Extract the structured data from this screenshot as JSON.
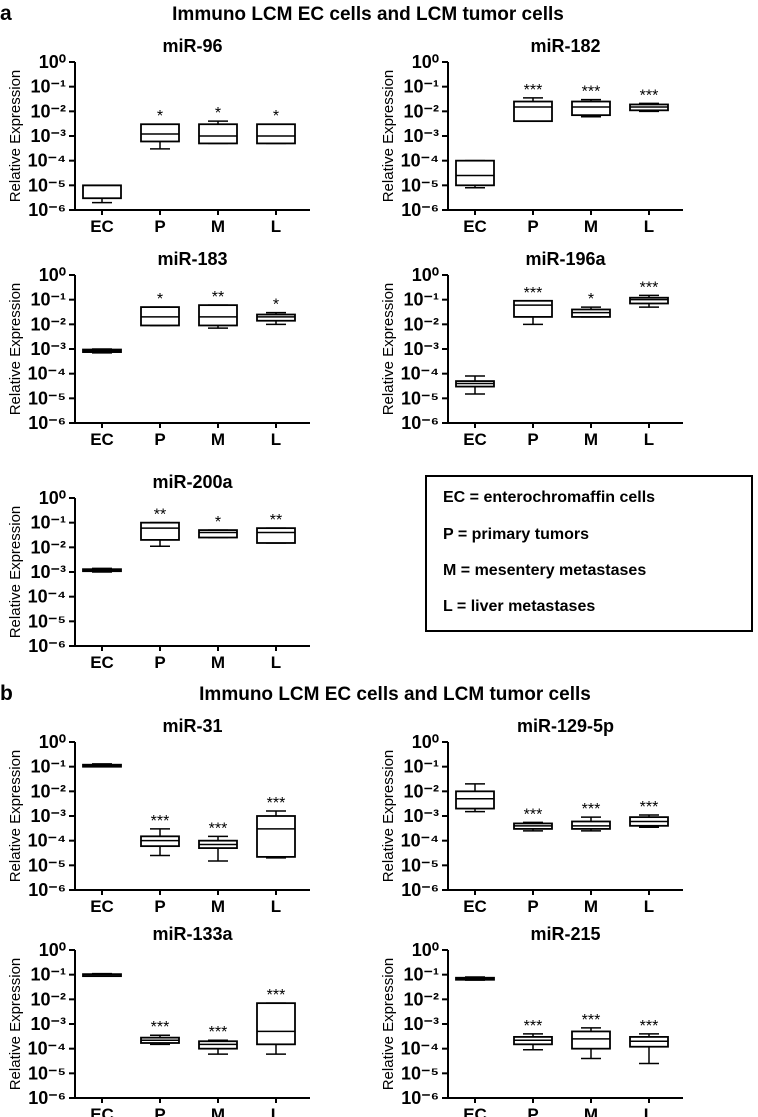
{
  "panels": [
    {
      "letter": "a",
      "title": "Immuno LCM EC cells and LCM tumor cells"
    },
    {
      "letter": "b",
      "title": "Immuno LCM EC cells and LCM tumor cells"
    }
  ],
  "legend": [
    "EC = enterochromaffin cells",
    "P = primary tumors",
    "M = mesentery metastases",
    "L = liver metastases"
  ],
  "chart_data": [
    {
      "type": "box",
      "panel": "a",
      "title": "miR-96",
      "ylabel": "Relative Expression",
      "yscale": "log",
      "ylim": [
        1e-06,
        1
      ],
      "yticks": [
        "10⁰",
        "10⁻¹",
        "10⁻²",
        "10⁻³",
        "10⁻⁴",
        "10⁻⁵",
        "10⁻⁶"
      ],
      "categories": [
        "EC",
        "P",
        "M",
        "L"
      ],
      "boxes": [
        {
          "min": 2e-06,
          "q1": 3e-06,
          "median": 1e-05,
          "q3": 1e-05,
          "max": 1e-05,
          "sig": ""
        },
        {
          "min": 0.0003,
          "q1": 0.0006,
          "median": 0.0012,
          "q3": 0.003,
          "max": 0.003,
          "sig": "*"
        },
        {
          "min": 0.0005,
          "q1": 0.0005,
          "median": 0.001,
          "q3": 0.003,
          "max": 0.004,
          "sig": "*"
        },
        {
          "min": 0.0005,
          "q1": 0.0005,
          "median": 0.001,
          "q3": 0.003,
          "max": 0.003,
          "sig": "*"
        }
      ]
    },
    {
      "type": "box",
      "panel": "a",
      "title": "miR-182",
      "ylabel": "Relative Expression",
      "yscale": "log",
      "ylim": [
        1e-06,
        1
      ],
      "yticks": [
        "10⁰",
        "10⁻¹",
        "10⁻²",
        "10⁻³",
        "10⁻⁴",
        "10⁻⁵",
        "10⁻⁶"
      ],
      "categories": [
        "EC",
        "P",
        "M",
        "L"
      ],
      "boxes": [
        {
          "min": 8e-06,
          "q1": 1e-05,
          "median": 2.5e-05,
          "q3": 0.0001,
          "max": 0.0001,
          "sig": ""
        },
        {
          "min": 0.004,
          "q1": 0.004,
          "median": 0.015,
          "q3": 0.025,
          "max": 0.035,
          "sig": "***"
        },
        {
          "min": 0.006,
          "q1": 0.007,
          "median": 0.015,
          "q3": 0.025,
          "max": 0.03,
          "sig": "***"
        },
        {
          "min": 0.01,
          "q1": 0.011,
          "median": 0.015,
          "q3": 0.019,
          "max": 0.021,
          "sig": "***"
        }
      ]
    },
    {
      "type": "box",
      "panel": "a",
      "title": "miR-183",
      "ylabel": "Relative Expression",
      "yscale": "log",
      "ylim": [
        1e-06,
        1
      ],
      "yticks": [
        "10⁰",
        "10⁻¹",
        "10⁻²",
        "10⁻³",
        "10⁻⁴",
        "10⁻⁵",
        "10⁻⁶"
      ],
      "categories": [
        "EC",
        "P",
        "M",
        "L"
      ],
      "boxes": [
        {
          "min": 0.0007,
          "q1": 0.00075,
          "median": 0.00085,
          "q3": 0.00095,
          "max": 0.001,
          "sig": ""
        },
        {
          "min": 0.009,
          "q1": 0.009,
          "median": 0.02,
          "q3": 0.05,
          "max": 0.05,
          "sig": "*"
        },
        {
          "min": 0.007,
          "q1": 0.009,
          "median": 0.02,
          "q3": 0.06,
          "max": 0.06,
          "sig": "**"
        },
        {
          "min": 0.01,
          "q1": 0.014,
          "median": 0.02,
          "q3": 0.025,
          "max": 0.03,
          "sig": "*"
        }
      ]
    },
    {
      "type": "box",
      "panel": "a",
      "title": "miR-196a",
      "ylabel": "Relative Expression",
      "yscale": "log",
      "ylim": [
        1e-06,
        1
      ],
      "yticks": [
        "10⁰",
        "10⁻¹",
        "10⁻²",
        "10⁻³",
        "10⁻⁴",
        "10⁻⁵",
        "10⁻⁶"
      ],
      "categories": [
        "EC",
        "P",
        "M",
        "L"
      ],
      "boxes": [
        {
          "min": 1.5e-05,
          "q1": 3e-05,
          "median": 4e-05,
          "q3": 5e-05,
          "max": 8e-05,
          "sig": ""
        },
        {
          "min": 0.01,
          "q1": 0.02,
          "median": 0.06,
          "q3": 0.09,
          "max": 0.09,
          "sig": "***"
        },
        {
          "min": 0.02,
          "q1": 0.02,
          "median": 0.03,
          "q3": 0.04,
          "max": 0.05,
          "sig": "*"
        },
        {
          "min": 0.05,
          "q1": 0.07,
          "median": 0.1,
          "q3": 0.12,
          "max": 0.15,
          "sig": "***"
        }
      ]
    },
    {
      "type": "box",
      "panel": "a",
      "title": "miR-200a",
      "ylabel": "Relative Expression",
      "yscale": "log",
      "ylim": [
        1e-06,
        1
      ],
      "yticks": [
        "10⁰",
        "10⁻¹",
        "10⁻²",
        "10⁻³",
        "10⁻⁴",
        "10⁻⁵",
        "10⁻⁶"
      ],
      "categories": [
        "EC",
        "P",
        "M",
        "L"
      ],
      "boxes": [
        {
          "min": 0.001,
          "q1": 0.0011,
          "median": 0.0012,
          "q3": 0.0013,
          "max": 0.0014,
          "sig": ""
        },
        {
          "min": 0.011,
          "q1": 0.02,
          "median": 0.06,
          "q3": 0.1,
          "max": 0.1,
          "sig": "**"
        },
        {
          "min": 0.025,
          "q1": 0.025,
          "median": 0.04,
          "q3": 0.05,
          "max": 0.05,
          "sig": "*"
        },
        {
          "min": 0.015,
          "q1": 0.015,
          "median": 0.04,
          "q3": 0.06,
          "max": 0.06,
          "sig": "**"
        }
      ]
    },
    {
      "type": "box",
      "panel": "b",
      "title": "miR-31",
      "ylabel": "Relative Expression",
      "yscale": "log",
      "ylim": [
        1e-06,
        1
      ],
      "yticks": [
        "10⁰",
        "10⁻¹",
        "10⁻²",
        "10⁻³",
        "10⁻⁴",
        "10⁻⁵",
        "10⁻⁶"
      ],
      "categories": [
        "EC",
        "P",
        "M",
        "L"
      ],
      "boxes": [
        {
          "min": 0.1,
          "q1": 0.1,
          "median": 0.11,
          "q3": 0.12,
          "max": 0.13,
          "sig": ""
        },
        {
          "min": 2.5e-05,
          "q1": 6e-05,
          "median": 0.0001,
          "q3": 0.00015,
          "max": 0.0003,
          "sig": "***"
        },
        {
          "min": 1.5e-05,
          "q1": 5e-05,
          "median": 7e-05,
          "q3": 0.0001,
          "max": 0.00015,
          "sig": "***"
        },
        {
          "min": 2e-05,
          "q1": 2.2e-05,
          "median": 0.0003,
          "q3": 0.001,
          "max": 0.0016,
          "sig": "***"
        }
      ]
    },
    {
      "type": "box",
      "panel": "b",
      "title": "miR-129-5p",
      "ylabel": "Relative Expression",
      "yscale": "log",
      "ylim": [
        1e-06,
        1
      ],
      "yticks": [
        "10⁰",
        "10⁻¹",
        "10⁻²",
        "10⁻³",
        "10⁻⁴",
        "10⁻⁵",
        "10⁻⁶"
      ],
      "categories": [
        "EC",
        "P",
        "M",
        "L"
      ],
      "boxes": [
        {
          "min": 0.0015,
          "q1": 0.002,
          "median": 0.005,
          "q3": 0.01,
          "max": 0.02,
          "sig": ""
        },
        {
          "min": 0.00025,
          "q1": 0.0003,
          "median": 0.0004,
          "q3": 0.0005,
          "max": 0.00055,
          "sig": "***"
        },
        {
          "min": 0.00025,
          "q1": 0.0003,
          "median": 0.0004,
          "q3": 0.0006,
          "max": 0.0009,
          "sig": "***"
        },
        {
          "min": 0.00035,
          "q1": 0.0004,
          "median": 0.0006,
          "q3": 0.0009,
          "max": 0.0011,
          "sig": "***"
        }
      ]
    },
    {
      "type": "box",
      "panel": "b",
      "title": "miR-133a",
      "ylabel": "Relative Expression",
      "yscale": "log",
      "ylim": [
        1e-06,
        1
      ],
      "yticks": [
        "10⁰",
        "10⁻¹",
        "10⁻²",
        "10⁻³",
        "10⁻⁴",
        "10⁻⁵",
        "10⁻⁶"
      ],
      "categories": [
        "EC",
        "P",
        "M",
        "L"
      ],
      "boxes": [
        {
          "min": 0.09,
          "q1": 0.09,
          "median": 0.1,
          "q3": 0.105,
          "max": 0.11,
          "sig": ""
        },
        {
          "min": 0.00015,
          "q1": 0.00017,
          "median": 0.00022,
          "q3": 0.00028,
          "max": 0.00035,
          "sig": "***"
        },
        {
          "min": 6e-05,
          "q1": 0.0001,
          "median": 0.00015,
          "q3": 0.0002,
          "max": 0.00022,
          "sig": "***"
        },
        {
          "min": 6e-05,
          "q1": 0.00015,
          "median": 0.0005,
          "q3": 0.007,
          "max": 0.007,
          "sig": "***"
        }
      ]
    },
    {
      "type": "box",
      "panel": "b",
      "title": "miR-215",
      "ylabel": "Relative Expression",
      "yscale": "log",
      "ylim": [
        1e-06,
        1
      ],
      "yticks": [
        "10⁰",
        "10⁻¹",
        "10⁻²",
        "10⁻³",
        "10⁻⁴",
        "10⁻⁵",
        "10⁻⁶"
      ],
      "categories": [
        "EC",
        "P",
        "M",
        "L"
      ],
      "boxes": [
        {
          "min": 0.06,
          "q1": 0.065,
          "median": 0.07,
          "q3": 0.075,
          "max": 0.08,
          "sig": ""
        },
        {
          "min": 9e-05,
          "q1": 0.00015,
          "median": 0.00022,
          "q3": 0.0003,
          "max": 0.0004,
          "sig": "***"
        },
        {
          "min": 4e-05,
          "q1": 0.0001,
          "median": 0.00025,
          "q3": 0.0005,
          "max": 0.0007,
          "sig": "***"
        },
        {
          "min": 2.5e-05,
          "q1": 0.00012,
          "median": 0.0002,
          "q3": 0.0003,
          "max": 0.0004,
          "sig": "***"
        }
      ]
    }
  ]
}
